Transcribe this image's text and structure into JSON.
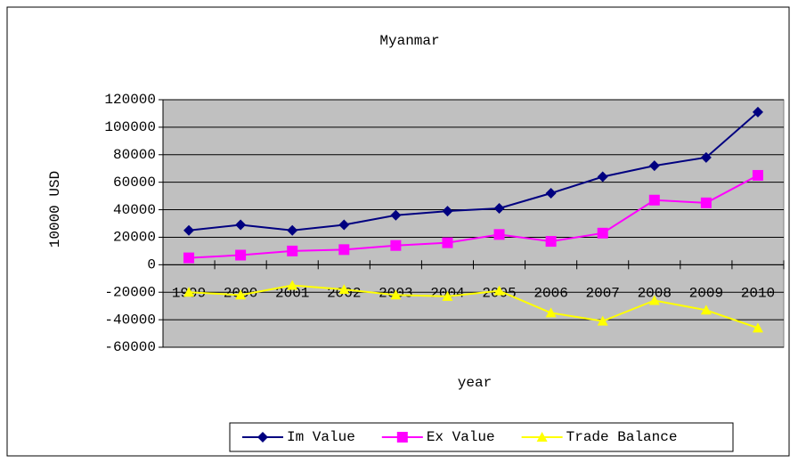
{
  "chart_data": {
    "type": "line",
    "title": "Myanmar",
    "x_label": "year",
    "y_label": "10000 USD",
    "categories": [
      "1999",
      "2000",
      "2001",
      "2002",
      "2003",
      "2004",
      "2005",
      "2006",
      "2007",
      "2008",
      "2009",
      "2010"
    ],
    "series": [
      {
        "name": "Im Value",
        "color": "#000080",
        "marker": "diamond",
        "values": [
          25000,
          29000,
          25000,
          29000,
          36000,
          39000,
          41000,
          52000,
          64000,
          72000,
          78000,
          111000
        ]
      },
      {
        "name": "Ex Value",
        "color": "#ff00ff",
        "marker": "square",
        "values": [
          5000,
          7000,
          10000,
          11000,
          14000,
          16000,
          22000,
          17000,
          23000,
          47000,
          45000,
          65000
        ]
      },
      {
        "name": "Trade Balance",
        "color": "#ffff00",
        "marker": "triangle",
        "values": [
          -20000,
          -22000,
          -15000,
          -18000,
          -22000,
          -23000,
          -19000,
          -35000,
          -41000,
          -26000,
          -33000,
          -46000
        ]
      }
    ],
    "ylim": [
      -60000,
      120000
    ],
    "yticks": [
      -60000,
      -40000,
      -20000,
      0,
      20000,
      40000,
      60000,
      80000,
      100000,
      120000
    ],
    "grid": true,
    "plot_background": "#c0c0c0",
    "legend": "bottom"
  }
}
